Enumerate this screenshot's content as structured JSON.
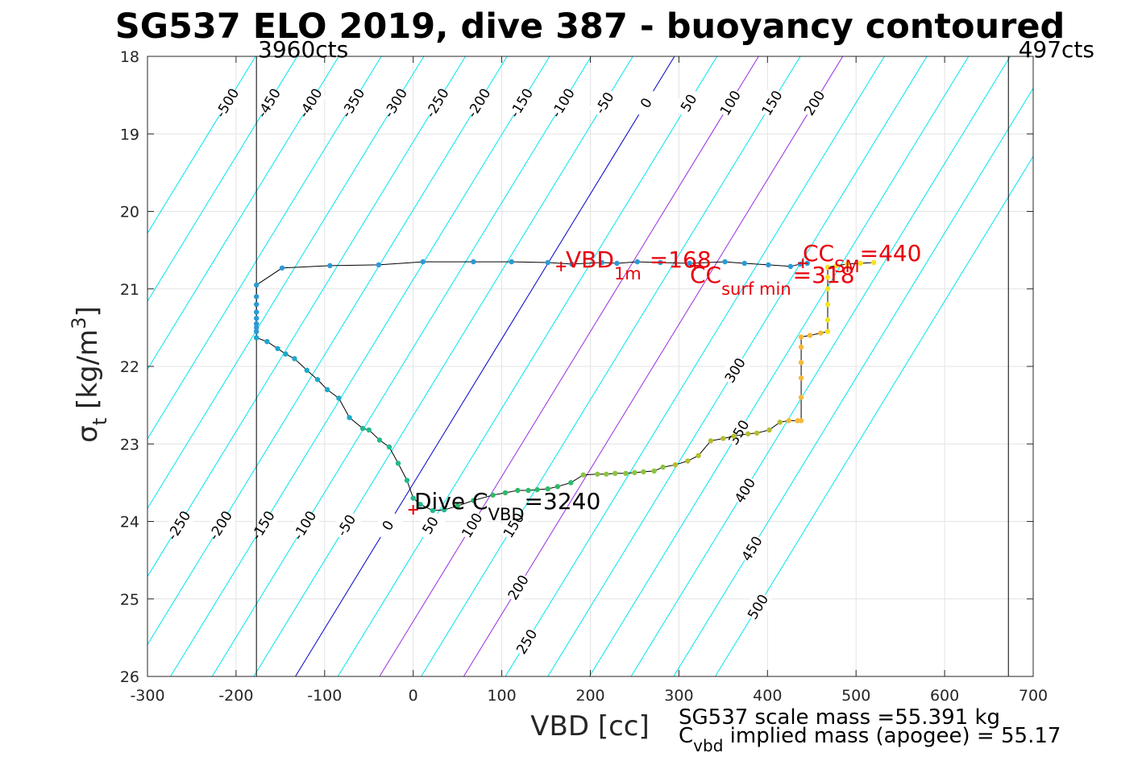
{
  "chart_data": {
    "type": "scatter",
    "title": "SG537 ELO 2019, dive 387 - buoyancy contoured",
    "xlabel": "VBD [cc]",
    "ylabel": {
      "sym": "σ",
      "sub": "t",
      "unit": "[kg/m",
      "sup": "3",
      "close": "]"
    },
    "xlim": [
      -300,
      700
    ],
    "ylim": [
      18,
      26
    ],
    "y_reversed": true,
    "grid": true,
    "x_ticks": [
      -300,
      -200,
      -100,
      0,
      100,
      200,
      300,
      400,
      500,
      600,
      700
    ],
    "x_tick_labels": [
      "-300",
      "-200",
      "-100",
      "0",
      "100",
      "200",
      "300",
      "400",
      "500",
      "600",
      "700"
    ],
    "y_ticks": [
      18,
      19,
      20,
      21,
      22,
      23,
      24,
      25,
      26
    ],
    "y_tick_labels": [
      "18",
      "19",
      "20",
      "21",
      "22",
      "23",
      "24",
      "25",
      "26"
    ],
    "vbd_limits": [
      {
        "x": -177,
        "label": "3960cts"
      },
      {
        "x": 672,
        "label": "497cts"
      }
    ],
    "contours": {
      "buoyancy_values": [
        -500,
        -450,
        -400,
        -350,
        -300,
        -250,
        -200,
        -150,
        -100,
        -50,
        0,
        50,
        100,
        150,
        200,
        250,
        300,
        350,
        400,
        450,
        500
      ],
      "vbd_at_sigma_18": [
        -178,
        -131,
        -84,
        -36,
        12,
        59,
        106,
        154,
        201,
        248,
        295,
        343,
        390,
        437,
        485,
        532,
        580,
        627,
        674,
        722,
        769
      ],
      "vbd_shift_per_sigma_unit": -53.5,
      "colors": {
        "default": "#00e5ee",
        "zero": "#0000cc",
        "special": "#9a2be2"
      },
      "special_values": [
        100,
        200
      ],
      "top_labels": [
        "-500",
        "-450",
        "-400",
        "-350",
        "-300",
        "-250",
        "-200",
        "-150",
        "-100",
        "-50",
        "0",
        "50",
        "100",
        "150",
        "200"
      ],
      "bottom_labels": [
        "-500",
        "-450",
        "-400",
        "-350",
        "-300",
        "-250",
        "-200",
        "-150",
        "-100",
        "-50",
        "0",
        "50",
        "100",
        "150",
        "200",
        "250"
      ],
      "right_labels": [
        "300",
        "350",
        "400",
        "450",
        "500"
      ]
    },
    "series": [
      {
        "name": "descent",
        "color": "#2a9ad6",
        "points": [
          [
            -177,
            21.63
          ],
          [
            -177,
            21.55
          ],
          [
            -177,
            21.5
          ],
          [
            -177,
            21.45
          ],
          [
            -177,
            21.38
          ],
          [
            -177,
            21.3
          ],
          [
            -177,
            21.2
          ],
          [
            -177,
            21.1
          ],
          [
            -177,
            20.95
          ],
          [
            -148,
            20.73
          ],
          [
            -94,
            20.7
          ],
          [
            -39,
            20.69
          ],
          [
            11,
            20.65
          ],
          [
            68,
            20.65
          ],
          [
            111,
            20.65
          ],
          [
            152,
            20.66
          ],
          [
            179,
            20.68
          ],
          [
            213,
            20.66
          ],
          [
            230,
            20.67
          ],
          [
            253,
            20.65
          ],
          [
            279,
            20.66
          ],
          [
            312,
            20.67
          ],
          [
            352,
            20.65
          ],
          [
            374,
            20.67
          ],
          [
            401,
            20.69
          ],
          [
            426,
            20.71
          ],
          [
            437,
            20.68
          ],
          [
            445,
            20.67
          ]
        ]
      },
      {
        "name": "ascent",
        "color_scale": [
          "#1ea8c8",
          "#22b98e",
          "#2dbb6a",
          "#8bc53f",
          "#b5bd2e",
          "#f6b93b",
          "#f4e41f"
        ],
        "points": [
          [
            -177,
            21.63
          ],
          [
            -165,
            21.68
          ],
          [
            -153,
            21.77
          ],
          [
            -144,
            21.84
          ],
          [
            -134,
            21.9
          ],
          [
            -120,
            22.05
          ],
          [
            -108,
            22.17
          ],
          [
            -97,
            22.3
          ],
          [
            -84,
            22.41
          ],
          [
            -72,
            22.66
          ],
          [
            -57,
            22.8
          ],
          [
            -50,
            22.82
          ],
          [
            -38,
            22.95
          ],
          [
            -27,
            23.04
          ],
          [
            -17,
            23.25
          ],
          [
            -7,
            23.47
          ],
          [
            0,
            23.7
          ],
          [
            8,
            23.78
          ],
          [
            22,
            23.86
          ],
          [
            35,
            23.85
          ],
          [
            50,
            23.8
          ],
          [
            68,
            23.73
          ],
          [
            90,
            23.66
          ],
          [
            104,
            23.63
          ],
          [
            118,
            23.6
          ],
          [
            130,
            23.6
          ],
          [
            140,
            23.59
          ],
          [
            152,
            23.58
          ],
          [
            163,
            23.55
          ],
          [
            178,
            23.5
          ],
          [
            192,
            23.4
          ],
          [
            208,
            23.39
          ],
          [
            218,
            23.39
          ],
          [
            228,
            23.38
          ],
          [
            240,
            23.38
          ],
          [
            250,
            23.37
          ],
          [
            260,
            23.36
          ],
          [
            272,
            23.35
          ],
          [
            282,
            23.3
          ],
          [
            296,
            23.27
          ],
          [
            310,
            23.22
          ],
          [
            322,
            23.15
          ],
          [
            336,
            22.96
          ],
          [
            350,
            22.93
          ],
          [
            362,
            22.9
          ],
          [
            378,
            22.87
          ],
          [
            388,
            22.86
          ],
          [
            402,
            22.82
          ],
          [
            414,
            22.72
          ],
          [
            424,
            22.7
          ],
          [
            434,
            22.7
          ],
          [
            438,
            22.7
          ],
          [
            438,
            22.4
          ],
          [
            438,
            22.15
          ],
          [
            438,
            21.95
          ],
          [
            438,
            21.75
          ],
          [
            438,
            21.62
          ],
          [
            448,
            21.6
          ],
          [
            460,
            21.57
          ],
          [
            468,
            21.55
          ],
          [
            468,
            21.4
          ],
          [
            468,
            21.2
          ],
          [
            468,
            21.0
          ],
          [
            468,
            20.85
          ],
          [
            468,
            20.72
          ],
          [
            478,
            20.7
          ],
          [
            490,
            20.68
          ],
          [
            505,
            20.67
          ],
          [
            520,
            20.66
          ]
        ]
      }
    ],
    "markers": [
      {
        "x": 167,
        "y": 20.71,
        "symbol": "+",
        "color": "#e8000b"
      },
      {
        "x": 440,
        "y": 20.67,
        "symbol": "+",
        "color": "#e8000b"
      },
      {
        "x": 318,
        "y": 20.7,
        "symbol": "+",
        "color": "#e8000b"
      },
      {
        "x": 0,
        "y": 23.85,
        "symbol": "+",
        "color": "#e8000b"
      }
    ],
    "annotations": {
      "vbd1m": {
        "main": "VBD",
        "sub": "1m",
        "value": "=168",
        "color": "#e8000b"
      },
      "cc_sm": {
        "main": "CC",
        "sub": "SM",
        "value": "=440",
        "color": "#e8000b"
      },
      "cc_surf": {
        "main": "CC",
        "sub": "surf min",
        "value": "=318",
        "color": "#e8000b"
      },
      "dive_c": {
        "main": "Dive C",
        "sub": "VBD",
        "value": "=3240",
        "color": "#000000"
      }
    },
    "footer": {
      "line1": "SG537 scale mass =55.391 kg",
      "line2_main": "C",
      "line2_sub": "vbd",
      "line2_text": " implied mass (apogee) = 55.17"
    }
  }
}
